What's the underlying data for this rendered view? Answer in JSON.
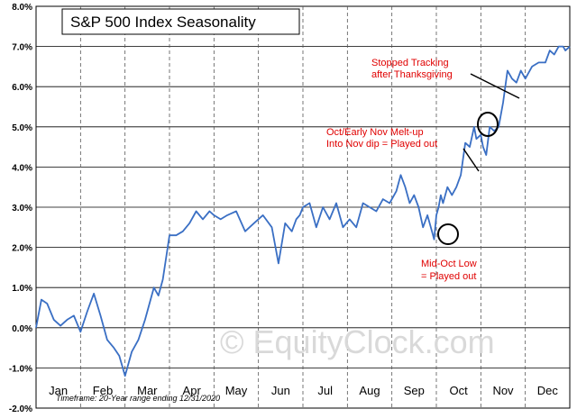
{
  "chart_data": {
    "type": "line",
    "title": "S&P 500 Index Seasonality",
    "ylim": [
      -2.0,
      8.0
    ],
    "yticks": [
      {
        "value": 8.0,
        "label": "8.0%"
      },
      {
        "value": 7.0,
        "label": "7.0%"
      },
      {
        "value": 6.0,
        "label": "6.0%"
      },
      {
        "value": 5.0,
        "label": "5.0%"
      },
      {
        "value": 4.0,
        "label": "4.0%"
      },
      {
        "value": 3.0,
        "label": "3.0%"
      },
      {
        "value": 2.0,
        "label": "2.0%"
      },
      {
        "value": 1.0,
        "label": "1.0%"
      },
      {
        "value": 0.0,
        "label": "0.0%"
      },
      {
        "value": -1.0,
        "label": "-1.0%"
      },
      {
        "value": -2.0,
        "label": "-2.0%"
      }
    ],
    "months": [
      "Jan",
      "Feb",
      "Mar",
      "Apr",
      "May",
      "Jun",
      "Jul",
      "Aug",
      "Sep",
      "Oct",
      "Nov",
      "Dec"
    ],
    "series": [
      {
        "name": "S&P 500 Index Seasonality",
        "color": "#3a6fc4",
        "x": [
          0.0,
          0.12,
          0.25,
          0.4,
          0.55,
          0.7,
          0.85,
          1.0,
          1.15,
          1.3,
          1.45,
          1.6,
          1.75,
          1.87,
          2.0,
          2.15,
          2.3,
          2.45,
          2.55,
          2.65,
          2.75,
          2.85,
          3.0,
          3.15,
          3.3,
          3.45,
          3.6,
          3.75,
          3.9,
          4.0,
          4.15,
          4.3,
          4.5,
          4.7,
          4.9,
          5.1,
          5.3,
          5.45,
          5.6,
          5.75,
          5.85,
          5.93,
          6.0,
          6.15,
          6.3,
          6.45,
          6.6,
          6.75,
          6.9,
          7.05,
          7.2,
          7.35,
          7.5,
          7.65,
          7.8,
          7.95,
          8.1,
          8.2,
          8.3,
          8.4,
          8.5,
          8.6,
          8.7,
          8.8,
          8.9,
          8.95,
          9.0,
          9.05,
          9.1,
          9.15,
          9.25,
          9.35,
          9.45,
          9.55,
          9.65,
          9.75,
          9.85,
          9.9,
          10.0,
          10.05,
          10.12,
          10.2,
          10.3,
          10.4,
          10.5,
          10.6,
          10.7,
          10.8,
          10.9,
          11.0,
          11.15,
          11.3,
          11.45,
          11.55,
          11.65,
          11.75,
          11.85,
          11.9,
          12.0
        ],
        "values": [
          0.0,
          0.7,
          0.6,
          0.2,
          0.05,
          0.2,
          0.3,
          -0.1,
          0.4,
          0.85,
          0.3,
          -0.3,
          -0.5,
          -0.7,
          -1.2,
          -0.6,
          -0.3,
          0.2,
          0.6,
          1.0,
          0.8,
          1.2,
          2.3,
          2.3,
          2.4,
          2.6,
          2.9,
          2.7,
          2.9,
          2.8,
          2.7,
          2.8,
          2.9,
          2.4,
          2.6,
          2.8,
          2.5,
          1.6,
          2.6,
          2.4,
          2.7,
          2.8,
          3.0,
          3.1,
          2.5,
          3.0,
          2.7,
          3.1,
          2.5,
          2.7,
          2.5,
          3.1,
          3.0,
          2.9,
          3.2,
          3.1,
          3.4,
          3.8,
          3.5,
          3.1,
          3.3,
          3.0,
          2.5,
          2.8,
          2.4,
          2.2,
          2.8,
          3.0,
          3.3,
          3.1,
          3.5,
          3.3,
          3.5,
          3.8,
          4.6,
          4.5,
          5.0,
          4.7,
          4.8,
          4.5,
          4.3,
          5.0,
          4.9,
          5.0,
          5.6,
          6.4,
          6.2,
          6.1,
          6.4,
          6.2,
          6.5,
          6.6,
          6.6,
          6.9,
          6.8,
          7.0,
          7.0,
          6.9,
          7.0
        ]
      }
    ],
    "annotations": [
      {
        "lines": [
          "Stopped Tracking",
          "after Thanksgiving"
        ]
      },
      {
        "lines": [
          "Oct/Early Nov Melt-up",
          "Into Nov dip = Played out"
        ]
      },
      {
        "lines": [
          "Mid-Oct Low",
          "=  Played out"
        ]
      }
    ],
    "watermark": "© EquityClock.com",
    "footnote": "Timeframe: 20-Year range ending 12/31/2020",
    "gridlines": true
  }
}
